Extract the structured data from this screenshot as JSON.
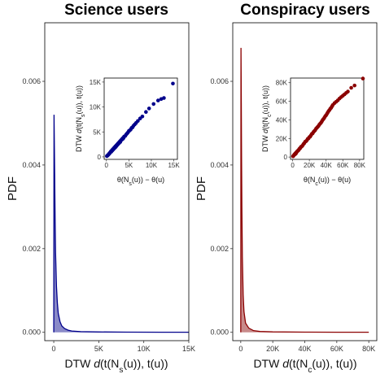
{
  "chart_data": [
    {
      "type": "area",
      "title": "Science users",
      "ylabel": "PDF",
      "xlabel": "DTW d(t(Ns(u)), t(u))",
      "xlabel_parts": {
        "prefix": "DTW ",
        "d": "d",
        "mid": "(t(N",
        "sub": "s",
        "suffix": "(u)), t(u))"
      },
      "xlim": [
        -1000,
        15000
      ],
      "ylim": [
        -0.0002,
        0.0074
      ],
      "x_ticks": [
        0,
        5000,
        10000,
        15000
      ],
      "x_tick_labels": [
        "0",
        "5K",
        "10K",
        "15K"
      ],
      "y_ticks": [
        0,
        0.002,
        0.004,
        0.006
      ],
      "y_tick_labels": [
        "0.000",
        "0.002",
        "0.004",
        "0.006"
      ],
      "grid": false,
      "color": "#00008B",
      "fill": "#8A8AC8",
      "x": [
        0,
        30,
        60,
        100,
        150,
        200,
        300,
        400,
        500,
        700,
        900,
        1200,
        1600,
        2000,
        3000,
        5000,
        8000,
        12000,
        15000
      ],
      "y": [
        0.0,
        0.0052,
        0.0046,
        0.0038,
        0.0027,
        0.0019,
        0.0011,
        0.0007,
        0.00045,
        0.00025,
        0.00015,
        9e-05,
        5e-05,
        3e-05,
        1.5e-05,
        8e-06,
        4e-06,
        2e-06,
        1e-06
      ],
      "inset": {
        "type": "scatter",
        "xlabel": "θ(Ns(u)) − θ(u)",
        "xlabel_parts": {
          "prefix": "θ(N",
          "sub": "s",
          "suffix": "(u)) − θ(u)"
        },
        "ylabel": "DTW d(t(Ns(u)), t(u))",
        "ylabel_parts": {
          "prefix": "DTW ",
          "d": "d",
          "mid": "(t(N",
          "sub": "s",
          "suffix": "(u)), t(u))"
        },
        "xlim": [
          -500,
          15800
        ],
        "ylim": [
          -500,
          15800
        ],
        "x_ticks": [
          0,
          5000,
          10000,
          15000
        ],
        "x_tick_labels": [
          "0",
          "5K",
          "10K",
          "15K"
        ],
        "y_ticks": [
          0,
          5000,
          10000,
          15000
        ],
        "y_tick_labels": [
          "0",
          "5K",
          "10K",
          "15K"
        ],
        "color": "#00008B",
        "points": [
          [
            100,
            150
          ],
          [
            200,
            250
          ],
          [
            300,
            300
          ],
          [
            400,
            420
          ],
          [
            500,
            480
          ],
          [
            600,
            650
          ],
          [
            700,
            680
          ],
          [
            800,
            850
          ],
          [
            900,
            950
          ],
          [
            1000,
            1100
          ],
          [
            1100,
            1050
          ],
          [
            1200,
            1300
          ],
          [
            1300,
            1250
          ],
          [
            1400,
            1500
          ],
          [
            1500,
            1450
          ],
          [
            1600,
            1700
          ],
          [
            1700,
            1650
          ],
          [
            1800,
            1900
          ],
          [
            1900,
            1850
          ],
          [
            2000,
            2100
          ],
          [
            2100,
            2000
          ],
          [
            2200,
            2300
          ],
          [
            2300,
            2250
          ],
          [
            2400,
            2500
          ],
          [
            2500,
            2450
          ],
          [
            2600,
            2700
          ],
          [
            2700,
            2650
          ],
          [
            2800,
            2900
          ],
          [
            2900,
            2850
          ],
          [
            3000,
            3100
          ],
          [
            3100,
            3000
          ],
          [
            3200,
            3300
          ],
          [
            3300,
            3350
          ],
          [
            3400,
            3450
          ],
          [
            3500,
            3600
          ],
          [
            3600,
            3550
          ],
          [
            3700,
            3800
          ],
          [
            3800,
            3750
          ],
          [
            3900,
            4000
          ],
          [
            4000,
            4100
          ],
          [
            4200,
            4200
          ],
          [
            4400,
            4500
          ],
          [
            4600,
            4700
          ],
          [
            4800,
            4900
          ],
          [
            5000,
            5200
          ],
          [
            5200,
            5300
          ],
          [
            5400,
            5500
          ],
          [
            5600,
            5800
          ],
          [
            5800,
            5900
          ],
          [
            6000,
            6200
          ],
          [
            6300,
            6500
          ],
          [
            6600,
            6800
          ],
          [
            7000,
            7200
          ],
          [
            7500,
            7700
          ],
          [
            8000,
            8100
          ],
          [
            8800,
            9000
          ],
          [
            9500,
            9700
          ],
          [
            10500,
            10600
          ],
          [
            11500,
            11300
          ],
          [
            12200,
            11600
          ],
          [
            12800,
            11800
          ],
          [
            14800,
            14700
          ]
        ]
      }
    },
    {
      "type": "area",
      "title": "Conspiracy users",
      "ylabel": "PDF",
      "xlabel": "DTW d(t(Nc(u)), t(u))",
      "xlabel_parts": {
        "prefix": "DTW ",
        "d": "d",
        "mid": "(t(N",
        "sub": "c",
        "suffix": "(u)), t(u))"
      },
      "xlim": [
        -5000,
        85000
      ],
      "ylim": [
        -0.0002,
        0.0074
      ],
      "x_ticks": [
        0,
        20000,
        40000,
        60000,
        80000
      ],
      "x_tick_labels": [
        "0",
        "20K",
        "40K",
        "60K",
        "80K"
      ],
      "y_ticks": [
        0,
        0.002,
        0.004,
        0.006
      ],
      "y_tick_labels": [
        "0.000",
        "0.002",
        "0.004",
        "0.006"
      ],
      "grid": false,
      "color": "#8B0000",
      "fill": "#C88A8A",
      "x": [
        0,
        150,
        300,
        500,
        700,
        1000,
        1500,
        2000,
        3000,
        5000,
        8000,
        12000,
        20000,
        40000,
        60000,
        80000
      ],
      "y": [
        0.0,
        0.0068,
        0.0058,
        0.0042,
        0.003,
        0.0018,
        0.0009,
        0.0005,
        0.00022,
        0.0001,
        4e-05,
        2e-05,
        1e-05,
        4e-06,
        2e-06,
        1e-06
      ],
      "inset": {
        "type": "scatter",
        "xlabel": "θ(Nc(u)) − θ(u)",
        "xlabel_parts": {
          "prefix": "θ(N",
          "sub": "c",
          "suffix": "(u)) − θ(u)"
        },
        "ylabel": "DTW d(t(Nc(u)), t(u))",
        "ylabel_parts": {
          "prefix": "DTW ",
          "d": "d",
          "mid": "(t(N",
          "sub": "c",
          "suffix": "(u)), t(u))"
        },
        "xlim": [
          -2500,
          85000
        ],
        "ylim": [
          -2500,
          85000
        ],
        "x_ticks": [
          0,
          20000,
          40000,
          60000,
          80000
        ],
        "x_tick_labels": [
          "0",
          "20K",
          "40K",
          "60K",
          "80K"
        ],
        "y_ticks": [
          0,
          20000,
          40000,
          60000,
          80000
        ],
        "y_tick_labels": [
          "0",
          "20K",
          "40K",
          "60K",
          "80K"
        ],
        "color": "#8B0000",
        "points": [
          [
            500,
            800
          ],
          [
            1000,
            1200
          ],
          [
            1500,
            2000
          ],
          [
            2000,
            2500
          ],
          [
            2500,
            3200
          ],
          [
            3000,
            3000
          ],
          [
            3500,
            4200
          ],
          [
            4000,
            3800
          ],
          [
            4500,
            5000
          ],
          [
            5000,
            5500
          ],
          [
            5500,
            6000
          ],
          [
            6000,
            6500
          ],
          [
            6500,
            7000
          ],
          [
            7000,
            7200
          ],
          [
            7500,
            8000
          ],
          [
            8000,
            8800
          ],
          [
            8500,
            9000
          ],
          [
            9000,
            9500
          ],
          [
            9500,
            10200
          ],
          [
            10000,
            11000
          ],
          [
            11000,
            11500
          ],
          [
            12000,
            12500
          ],
          [
            13000,
            14000
          ],
          [
            14000,
            15000
          ],
          [
            15000,
            16500
          ],
          [
            16000,
            17000
          ],
          [
            17000,
            18000
          ],
          [
            18000,
            19500
          ],
          [
            19000,
            20000
          ],
          [
            20000,
            21500
          ],
          [
            21000,
            22000
          ],
          [
            22000,
            23500
          ],
          [
            23000,
            25000
          ],
          [
            24000,
            25500
          ],
          [
            25000,
            27000
          ],
          [
            26000,
            28000
          ],
          [
            27000,
            29000
          ],
          [
            28000,
            30500
          ],
          [
            29000,
            31500
          ],
          [
            30000,
            32500
          ],
          [
            31000,
            33500
          ],
          [
            32000,
            35000
          ],
          [
            33000,
            36000
          ],
          [
            34000,
            37000
          ],
          [
            35000,
            38500
          ],
          [
            36000,
            40000
          ],
          [
            37000,
            41000
          ],
          [
            38000,
            42500
          ],
          [
            39000,
            44000
          ],
          [
            40000,
            45000
          ],
          [
            41000,
            46500
          ],
          [
            42000,
            48000
          ],
          [
            43000,
            49500
          ],
          [
            44000,
            50500
          ],
          [
            45000,
            52000
          ],
          [
            46000,
            53000
          ],
          [
            47000,
            54500
          ],
          [
            48000,
            56000
          ],
          [
            50000,
            58000
          ],
          [
            52000,
            59500
          ],
          [
            54000,
            61000
          ],
          [
            56000,
            63000
          ],
          [
            58000,
            64500
          ],
          [
            60000,
            66000
          ],
          [
            62000,
            67500
          ],
          [
            64000,
            69000
          ],
          [
            66000,
            70500
          ],
          [
            70000,
            74500
          ],
          [
            74000,
            77000
          ],
          [
            84000,
            84500
          ]
        ]
      }
    }
  ]
}
